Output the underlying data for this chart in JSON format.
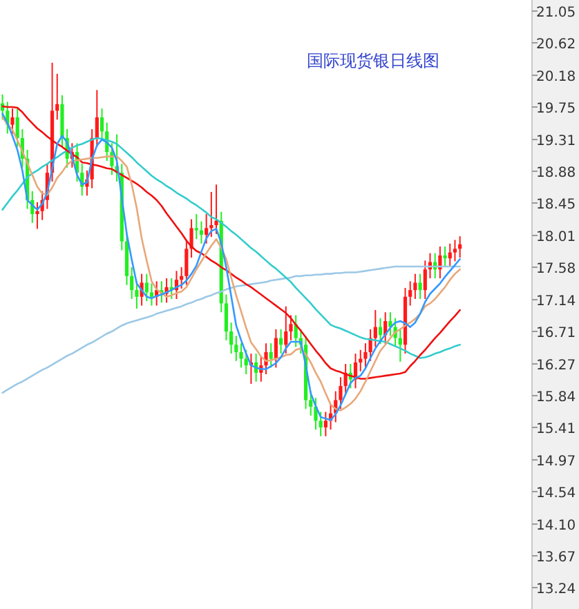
{
  "chart_data": {
    "type": "candlestick",
    "title": "国际现货银日线图",
    "categories": [
      null,
      null,
      null,
      null,
      null,
      null,
      null,
      null,
      null,
      null,
      null,
      null,
      null,
      null,
      null,
      null,
      null,
      null,
      null,
      null,
      null,
      null,
      null,
      null,
      null,
      null,
      null,
      null,
      null,
      null,
      null,
      null,
      null,
      null,
      null,
      null,
      null,
      null,
      null,
      null,
      null,
      null,
      null,
      null,
      null,
      null,
      null,
      null,
      null,
      null,
      null,
      null,
      null,
      null,
      null,
      null,
      null,
      null,
      null,
      null,
      null,
      null,
      null,
      null,
      null,
      null,
      null,
      null,
      null,
      null,
      null,
      null,
      null,
      null,
      null,
      null,
      null,
      null,
      null,
      null,
      null,
      null,
      null,
      null,
      null,
      null,
      null,
      null,
      null,
      null,
      null,
      null,
      null,
      null,
      null,
      null,
      null,
      null,
      null,
      null,
      null,
      null,
      null,
      null,
      null,
      null,
      null
    ],
    "ohlc": [
      [
        19.8,
        19.92,
        19.58,
        19.7
      ],
      [
        19.7,
        19.82,
        19.39,
        19.51
      ],
      [
        19.51,
        19.73,
        19.39,
        19.61
      ],
      [
        19.61,
        19.73,
        19.21,
        19.33
      ],
      [
        19.33,
        19.45,
        18.93,
        19.05
      ],
      [
        19.05,
        19.17,
        18.37,
        18.49
      ],
      [
        18.49,
        18.61,
        18.18,
        18.3
      ],
      [
        18.3,
        18.46,
        18.1,
        18.34
      ],
      [
        18.34,
        18.61,
        18.22,
        18.49
      ],
      [
        18.49,
        18.98,
        18.37,
        18.86
      ],
      [
        18.86,
        20.35,
        18.74,
        19.7
      ],
      [
        19.7,
        20.2,
        19.58,
        19.79
      ],
      [
        19.79,
        19.91,
        19.21,
        19.33
      ],
      [
        19.33,
        19.45,
        18.93,
        19.05
      ],
      [
        19.05,
        19.26,
        18.93,
        19.14
      ],
      [
        19.14,
        19.26,
        18.74,
        18.86
      ],
      [
        18.86,
        18.98,
        18.55,
        18.67
      ],
      [
        18.67,
        18.89,
        18.55,
        18.77
      ],
      [
        18.77,
        19.45,
        18.65,
        19.33
      ],
      [
        19.33,
        19.98,
        19.21,
        19.61
      ],
      [
        19.61,
        19.73,
        19.3,
        19.42
      ],
      [
        19.42,
        19.54,
        19.02,
        19.14
      ],
      [
        19.14,
        19.26,
        18.83,
        18.95
      ],
      [
        18.95,
        19.38,
        18.74,
        18.86
      ],
      [
        18.86,
        18.98,
        17.81,
        17.93
      ],
      [
        17.93,
        18.05,
        17.34,
        17.46
      ],
      [
        17.46,
        17.58,
        17.15,
        17.27
      ],
      [
        17.27,
        17.39,
        17.02,
        17.18
      ],
      [
        17.18,
        17.49,
        17.06,
        17.37
      ],
      [
        17.37,
        17.49,
        17.12,
        17.24
      ],
      [
        17.24,
        17.36,
        17.06,
        17.18
      ],
      [
        17.18,
        17.39,
        17.06,
        17.27
      ],
      [
        17.27,
        17.39,
        17.1,
        17.22
      ],
      [
        17.22,
        17.43,
        17.1,
        17.31
      ],
      [
        17.31,
        17.43,
        17.15,
        17.27
      ],
      [
        17.27,
        17.53,
        17.15,
        17.41
      ],
      [
        17.41,
        17.58,
        17.29,
        17.46
      ],
      [
        17.46,
        17.95,
        17.34,
        17.83
      ],
      [
        17.83,
        18.23,
        17.71,
        18.11
      ],
      [
        18.11,
        18.3,
        17.96,
        18.08
      ],
      [
        18.08,
        18.2,
        17.9,
        18.02
      ],
      [
        18.02,
        18.3,
        17.9,
        18.11
      ],
      [
        18.11,
        18.6,
        17.99,
        18.15
      ],
      [
        18.15,
        18.7,
        18.03,
        18.21
      ],
      [
        18.21,
        18.33,
        16.97,
        17.09
      ],
      [
        17.09,
        17.21,
        16.59,
        16.71
      ],
      [
        16.71,
        16.83,
        16.41,
        16.53
      ],
      [
        16.53,
        16.65,
        16.31,
        16.43
      ],
      [
        16.43,
        16.55,
        16.22,
        16.34
      ],
      [
        16.34,
        16.46,
        16.13,
        16.25
      ],
      [
        16.25,
        16.41,
        16.0,
        16.29
      ],
      [
        16.29,
        16.41,
        16.03,
        16.15
      ],
      [
        16.15,
        16.37,
        16.03,
        16.25
      ],
      [
        16.25,
        16.55,
        16.13,
        16.43
      ],
      [
        16.43,
        16.55,
        16.22,
        16.34
      ],
      [
        16.34,
        16.74,
        16.22,
        16.62
      ],
      [
        16.62,
        16.74,
        16.41,
        16.53
      ],
      [
        16.53,
        17.05,
        16.41,
        16.71
      ],
      [
        16.71,
        16.93,
        16.59,
        16.81
      ],
      [
        16.81,
        16.93,
        16.5,
        16.62
      ],
      [
        16.62,
        16.74,
        16.41,
        16.53
      ],
      [
        16.53,
        16.65,
        15.66,
        15.78
      ],
      [
        15.78,
        15.9,
        15.57,
        15.69
      ],
      [
        15.69,
        15.81,
        15.38,
        15.5
      ],
      [
        15.5,
        15.62,
        15.29,
        15.41
      ],
      [
        15.41,
        15.62,
        15.29,
        15.5
      ],
      [
        15.5,
        15.72,
        15.38,
        15.6
      ],
      [
        15.6,
        15.9,
        15.48,
        15.78
      ],
      [
        15.78,
        16.09,
        15.66,
        15.97
      ],
      [
        15.97,
        16.27,
        15.85,
        16.15
      ],
      [
        16.15,
        16.27,
        15.94,
        16.06
      ],
      [
        16.06,
        16.41,
        15.94,
        16.29
      ],
      [
        16.29,
        16.46,
        16.17,
        16.34
      ],
      [
        16.34,
        16.55,
        16.22,
        16.43
      ],
      [
        16.43,
        16.74,
        16.31,
        16.62
      ],
      [
        16.62,
        17.0,
        16.5,
        16.77
      ],
      [
        16.77,
        16.89,
        16.54,
        16.66
      ],
      [
        16.66,
        16.97,
        16.54,
        16.85
      ],
      [
        16.85,
        16.97,
        16.65,
        16.77
      ],
      [
        16.77,
        16.89,
        16.5,
        16.62
      ],
      [
        16.62,
        16.74,
        16.3,
        16.53
      ],
      [
        16.53,
        17.3,
        16.41,
        17.18
      ],
      [
        17.18,
        17.39,
        17.06,
        17.27
      ],
      [
        17.27,
        17.49,
        17.15,
        17.37
      ],
      [
        17.37,
        17.49,
        17.15,
        17.27
      ],
      [
        17.27,
        17.67,
        17.15,
        17.55
      ],
      [
        17.55,
        17.77,
        17.43,
        17.65
      ],
      [
        17.65,
        17.77,
        17.43,
        17.55
      ],
      [
        17.55,
        17.86,
        17.43,
        17.74
      ],
      [
        17.74,
        17.86,
        17.58,
        17.7
      ],
      [
        17.7,
        17.9,
        17.58,
        17.78
      ],
      [
        17.78,
        17.95,
        17.66,
        17.83
      ],
      [
        17.83,
        18.0,
        17.71,
        17.89
      ],
      null,
      null,
      null,
      null,
      null,
      null,
      null,
      null,
      null,
      null,
      null,
      null,
      null,
      null
    ],
    "colors": [
      "#22ee22",
      "#22ee22",
      "#ff1a1a",
      "#22ee22",
      "#22ee22",
      "#22ee22",
      "#22ee22",
      "#ff1a1a",
      "#ff1a1a",
      "#ff1a1a",
      "#ff1a1a",
      "#ff1a1a",
      "#22ee22",
      "#22ee22",
      "#ff1a1a",
      "#22ee22",
      "#22ee22",
      "#ff1a1a",
      "#ff1a1a",
      "#ff1a1a",
      "#22ee22",
      "#22ee22",
      "#22ee22",
      "#22ee22",
      "#22ee22",
      "#22ee22",
      "#22ee22",
      "#22ee22",
      "#ff1a1a",
      "#22ee22",
      "#22ee22",
      "#ff1a1a",
      "#22ee22",
      "#ff1a1a",
      "#22ee22",
      "#ff1a1a",
      "#ff1a1a",
      "#ff1a1a",
      "#ff1a1a",
      "#22ee22",
      "#22ee22",
      "#ff1a1a",
      "#ff1a1a",
      "#ff1a1a",
      "#22ee22",
      "#22ee22",
      "#22ee22",
      "#22ee22",
      "#22ee22",
      "#22ee22",
      "#ff1a1a",
      "#22ee22",
      "#ff1a1a",
      "#ff1a1a",
      "#22ee22",
      "#ff1a1a",
      "#22ee22",
      "#ff1a1a",
      "#ff1a1a",
      "#22ee22",
      "#22ee22",
      "#22ee22",
      "#22ee22",
      "#22ee22",
      "#22ee22",
      "#ff1a1a",
      "#ff1a1a",
      "#ff1a1a",
      "#ff1a1a",
      "#ff1a1a",
      "#22ee22",
      "#ff1a1a",
      "#ff1a1a",
      "#ff1a1a",
      "#ff1a1a",
      "#ff1a1a",
      "#22ee22",
      "#ff1a1a",
      "#22ee22",
      "#22ee22",
      "#22ee22",
      "#ff1a1a",
      "#ff1a1a",
      "#ff1a1a",
      "#22ee22",
      "#ff1a1a",
      "#ff1a1a",
      "#22ee22",
      "#ff1a1a",
      "#22ee22",
      "#ff1a1a",
      "#ff1a1a",
      "#ff1a1a",
      null,
      null,
      null,
      null,
      null,
      null,
      null,
      null,
      null,
      null,
      null,
      null,
      null,
      null
    ],
    "series": [
      {
        "type": "line",
        "color": "#9cc8e6",
        "values": [
          15.88,
          15.92,
          15.96,
          16.0,
          16.03,
          16.07,
          16.11,
          16.15,
          16.19,
          16.22,
          16.26,
          16.3,
          16.34,
          16.38,
          16.41,
          16.45,
          16.49,
          16.53,
          16.56,
          16.6,
          16.64,
          16.68,
          16.71,
          16.75,
          16.79,
          16.82,
          16.84,
          16.86,
          16.88,
          16.9,
          16.92,
          16.95,
          16.97,
          16.99,
          17.01,
          17.03,
          17.05,
          17.08,
          17.1,
          17.13,
          17.15,
          17.18,
          17.2,
          17.23,
          17.25,
          17.28,
          17.3,
          17.32,
          17.33,
          17.34,
          17.35,
          17.36,
          17.37,
          17.38,
          17.4,
          17.41,
          17.42,
          17.43,
          17.44,
          17.46,
          17.46,
          17.47,
          17.47,
          17.48,
          17.48,
          17.49,
          17.49,
          17.5,
          17.5,
          17.51,
          17.51,
          17.51,
          17.52,
          17.53,
          17.54,
          17.55,
          17.56,
          17.57,
          17.58,
          17.59,
          17.59,
          17.59,
          17.59,
          17.59,
          17.59,
          17.59,
          17.59,
          17.59,
          17.59,
          17.59,
          17.59,
          17.59,
          17.59,
          null,
          null,
          null,
          null,
          null,
          null,
          null,
          null,
          null,
          null,
          null,
          null,
          null,
          null
        ]
      },
      {
        "type": "line",
        "color": "#33cccc",
        "values": [
          18.36,
          18.45,
          18.54,
          18.62,
          18.71,
          18.8,
          18.85,
          18.89,
          18.94,
          18.98,
          19.03,
          19.07,
          19.12,
          19.16,
          19.2,
          19.23,
          19.25,
          19.28,
          19.31,
          19.33,
          19.32,
          19.3,
          19.28,
          19.25,
          19.19,
          19.13,
          19.07,
          19.0,
          18.94,
          18.88,
          18.82,
          18.77,
          18.73,
          18.68,
          18.64,
          18.59,
          18.55,
          18.51,
          18.46,
          18.42,
          18.37,
          18.32,
          18.26,
          18.23,
          18.18,
          18.13,
          18.07,
          18.02,
          17.96,
          17.9,
          17.84,
          17.79,
          17.73,
          17.67,
          17.61,
          17.56,
          17.5,
          17.44,
          17.38,
          17.3,
          17.23,
          17.16,
          17.09,
          17.01,
          16.94,
          16.87,
          16.8,
          16.77,
          16.75,
          16.72,
          16.69,
          16.66,
          16.63,
          16.61,
          16.6,
          16.59,
          16.58,
          16.57,
          16.54,
          16.51,
          16.48,
          16.45,
          16.41,
          16.38,
          16.35,
          16.36,
          16.38,
          16.41,
          16.43,
          16.46,
          16.48,
          16.51,
          16.53,
          null,
          null,
          null,
          null,
          null,
          null,
          null,
          null,
          null,
          null,
          null,
          null,
          null,
          null
        ]
      },
      {
        "type": "line",
        "color": "#ee1111",
        "values": [
          19.76,
          19.75,
          19.75,
          19.74,
          19.68,
          19.6,
          19.53,
          19.46,
          19.41,
          19.35,
          19.3,
          19.25,
          19.21,
          19.16,
          19.11,
          19.07,
          19.0,
          18.99,
          18.97,
          18.96,
          18.94,
          18.92,
          18.91,
          18.87,
          18.83,
          18.79,
          18.75,
          18.71,
          18.66,
          18.6,
          18.55,
          18.49,
          18.41,
          18.31,
          18.22,
          18.13,
          18.04,
          17.94,
          17.86,
          17.8,
          17.77,
          17.72,
          17.67,
          17.63,
          17.58,
          17.54,
          17.49,
          17.44,
          17.4,
          17.35,
          17.31,
          17.26,
          17.21,
          17.16,
          17.11,
          17.06,
          17.01,
          16.96,
          16.89,
          16.8,
          16.72,
          16.63,
          16.54,
          16.45,
          16.37,
          16.28,
          16.21,
          16.18,
          16.16,
          16.13,
          16.11,
          16.09,
          16.07,
          16.07,
          16.08,
          16.09,
          16.1,
          16.11,
          16.12,
          16.13,
          16.14,
          16.16,
          16.24,
          16.31,
          16.39,
          16.46,
          16.54,
          16.62,
          16.69,
          16.77,
          16.85,
          16.92,
          17.0,
          null,
          null,
          null,
          null,
          null,
          null,
          null,
          null,
          null,
          null,
          null,
          null,
          null,
          null
        ]
      },
      {
        "type": "line",
        "color": "#e8a878",
        "values": [
          19.61,
          19.52,
          19.44,
          19.3,
          19.15,
          18.99,
          18.83,
          18.67,
          18.58,
          18.56,
          18.66,
          18.79,
          18.87,
          18.97,
          19.02,
          19.03,
          19.04,
          19.05,
          19.06,
          19.06,
          19.07,
          19.08,
          19.08,
          19.08,
          19.02,
          18.94,
          18.7,
          18.38,
          17.97,
          17.67,
          17.39,
          17.28,
          17.23,
          17.18,
          17.2,
          17.23,
          17.25,
          17.31,
          17.43,
          17.55,
          17.66,
          17.77,
          17.87,
          17.96,
          17.84,
          17.69,
          17.44,
          17.2,
          16.98,
          16.76,
          16.56,
          16.47,
          16.37,
          16.31,
          16.32,
          16.34,
          16.36,
          16.39,
          16.4,
          16.46,
          16.48,
          16.4,
          16.29,
          16.15,
          16.03,
          15.87,
          15.72,
          15.66,
          15.64,
          15.68,
          15.73,
          15.8,
          15.9,
          16.03,
          16.17,
          16.31,
          16.45,
          16.53,
          16.62,
          16.7,
          16.74,
          16.79,
          16.83,
          16.88,
          16.95,
          17.05,
          17.09,
          17.15,
          17.23,
          17.31,
          17.41,
          17.49,
          17.55,
          null,
          null,
          null,
          null,
          null,
          null,
          null,
          null,
          null,
          null,
          null,
          null,
          null,
          null
        ]
      },
      {
        "type": "line",
        "color": "#3399ff",
        "values": [
          19.66,
          19.53,
          19.36,
          19.17,
          18.89,
          18.49,
          18.42,
          18.36,
          18.44,
          18.59,
          18.92,
          19.25,
          19.36,
          19.27,
          19.08,
          18.83,
          18.7,
          18.73,
          19.04,
          19.23,
          19.31,
          19.27,
          19.2,
          19.02,
          18.52,
          18.03,
          17.68,
          17.36,
          17.27,
          17.18,
          17.16,
          17.19,
          17.21,
          17.24,
          17.27,
          17.31,
          17.34,
          17.4,
          17.49,
          17.6,
          17.79,
          17.97,
          18.07,
          18.1,
          17.91,
          17.58,
          17.19,
          16.79,
          16.59,
          16.41,
          16.25,
          16.22,
          16.2,
          16.2,
          16.24,
          16.28,
          16.36,
          16.48,
          16.57,
          16.57,
          16.57,
          16.25,
          15.87,
          15.7,
          15.55,
          15.53,
          15.51,
          15.59,
          15.71,
          15.86,
          16.01,
          16.08,
          16.11,
          16.21,
          16.35,
          16.48,
          16.58,
          16.67,
          16.76,
          16.83,
          16.85,
          16.82,
          16.77,
          16.83,
          16.95,
          17.11,
          17.22,
          17.29,
          17.36,
          17.45,
          17.53,
          17.61,
          17.69,
          null,
          null,
          null,
          null,
          null,
          null,
          null,
          null,
          null,
          null,
          null,
          null,
          null,
          null
        ]
      }
    ],
    "ylim": [
      12.95,
      21.2
    ],
    "yticks": [
      21.05,
      20.62,
      20.18,
      19.75,
      19.31,
      18.88,
      18.45,
      18.01,
      17.58,
      17.14,
      16.71,
      16.27,
      15.84,
      15.41,
      14.97,
      14.54,
      {
        "value": 14.1,
        "label": "14.10"
      },
      13.67,
      13.24
    ]
  }
}
